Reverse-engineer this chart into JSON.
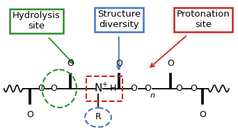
{
  "background_color": "#ffffff",
  "labels": {
    "hydrolysis": "Hydrolysis\nsite",
    "structure": "Structure\ndiversity",
    "protonation": "Protonation\nsite"
  },
  "box_colors": {
    "hydrolysis": "#2d8a2d",
    "structure": "#4472c4",
    "protonation": "#cc2222"
  }
}
